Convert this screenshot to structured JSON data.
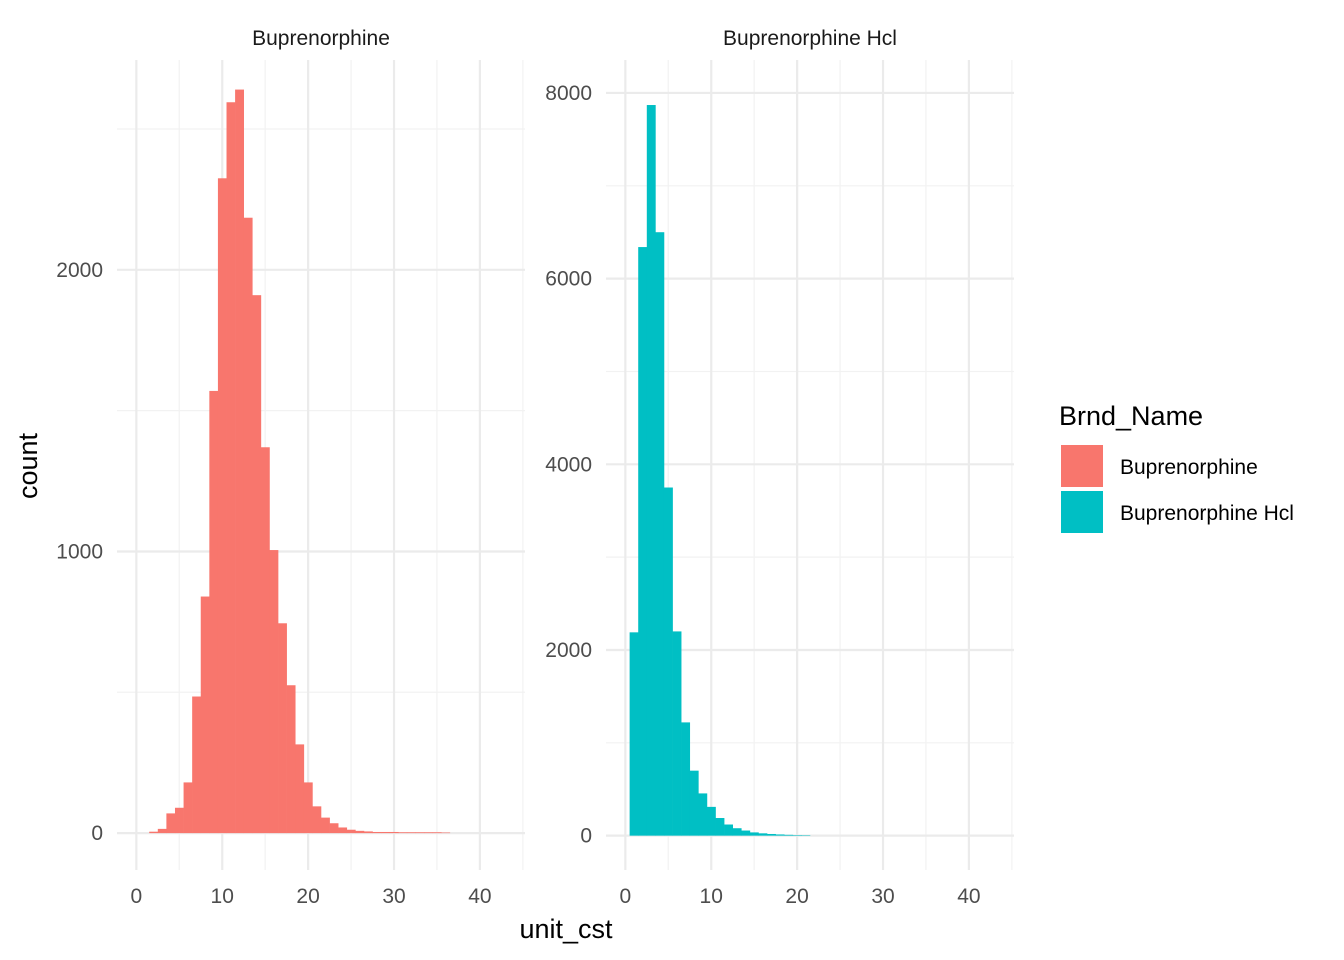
{
  "chart_data": {
    "type": "bar",
    "xlabel": "unit_cst",
    "ylabel": "count",
    "legend": {
      "title": "Brnd_Name",
      "placement": "right",
      "entries": [
        {
          "name": "Buprenorphine",
          "color": "#F8766D"
        },
        {
          "name": "Buprenorphine Hcl",
          "color": "#00BFC4"
        }
      ]
    },
    "grid": true,
    "x_ticks": [
      0,
      10,
      20,
      30,
      40
    ],
    "facets": [
      {
        "title": "Buprenorphine",
        "color": "#F8766D",
        "xlim": [
          -2.25,
          45.25
        ],
        "ylim": [
          -131,
          2745
        ],
        "y_ticks": [
          0,
          1000,
          2000
        ],
        "bin_width": 1,
        "bin_start": 1.5,
        "values": [
          5,
          15,
          70,
          90,
          180,
          485,
          840,
          1570,
          2325,
          2595,
          2640,
          2185,
          1910,
          1370,
          1005,
          745,
          525,
          315,
          180,
          95,
          55,
          35,
          20,
          12,
          8,
          6,
          4,
          4,
          4,
          3,
          3,
          3,
          3,
          3,
          2
        ]
      },
      {
        "title": "Buprenorphine Hcl",
        "color": "#00BFC4",
        "xlim": [
          -2.25,
          45.25
        ],
        "ylim": [
          -370,
          8355
        ],
        "y_ticks": [
          0,
          2000,
          4000,
          6000,
          8000
        ],
        "bin_width": 1,
        "bin_start": 0.5,
        "values": [
          2190,
          6340,
          7870,
          6500,
          3750,
          2200,
          1220,
          700,
          455,
          310,
          190,
          120,
          80,
          55,
          35,
          25,
          18,
          13,
          9,
          6,
          5
        ]
      }
    ]
  }
}
